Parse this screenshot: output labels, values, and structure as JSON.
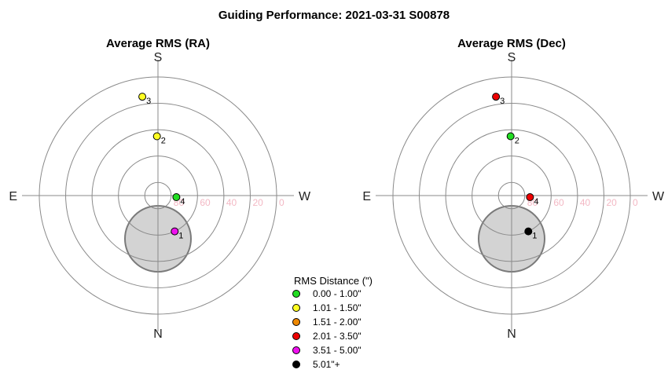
{
  "title": "Guiding Performance: 2021-03-31 S00878",
  "legend": {
    "title": "RMS Distance (\")",
    "items": [
      {
        "label": "0.00 - 1.00\"",
        "color": "#22dd22"
      },
      {
        "label": "1.01 - 1.50\"",
        "color": "#ffff22"
      },
      {
        "label": "1.51 - 2.00\"",
        "color": "#ee8800"
      },
      {
        "label": "2.01 - 3.50\"",
        "color": "#ee0000"
      },
      {
        "label": "3.51 - 5.00\"",
        "color": "#ee11ee"
      },
      {
        "label": "5.01\"+",
        "color": "#000000"
      }
    ]
  },
  "chart_data": [
    {
      "type": "scatter",
      "projection": "polar-sky",
      "title": "Average RMS (RA)",
      "compass": {
        "top": "S",
        "bottom": "N",
        "left": "E",
        "right": "W"
      },
      "altitude_rings": [
        0,
        20,
        40,
        60,
        80
      ],
      "altitude_tick_labels": [
        "80",
        "60",
        "40",
        "20",
        "0"
      ],
      "points": [
        {
          "label": "1",
          "azimuth": 335,
          "altitude": 60,
          "rms_class": "3.51 - 5.00\"",
          "color": "#ee11ee"
        },
        {
          "label": "2",
          "azimuth": 179,
          "altitude": 45,
          "rms_class": "1.01 - 1.50\"",
          "color": "#ffff22"
        },
        {
          "label": "3",
          "azimuth": 171,
          "altitude": 14,
          "rms_class": "1.01 - 1.50\"",
          "color": "#ffff22"
        },
        {
          "label": "4",
          "azimuth": 275,
          "altitude": 76,
          "rms_class": "0.00 - 1.00\"",
          "color": "#22dd22"
        }
      ]
    },
    {
      "type": "scatter",
      "projection": "polar-sky",
      "title": "Average RMS (Dec)",
      "compass": {
        "top": "S",
        "bottom": "N",
        "left": "E",
        "right": "W"
      },
      "altitude_rings": [
        0,
        20,
        40,
        60,
        80
      ],
      "altitude_tick_labels": [
        "80",
        "60",
        "40",
        "20",
        "0"
      ],
      "points": [
        {
          "label": "1",
          "azimuth": 335,
          "altitude": 60,
          "rms_class": "5.01\"+",
          "color": "#000000"
        },
        {
          "label": "2",
          "azimuth": 179,
          "altitude": 45,
          "rms_class": "0.00 - 1.00\"",
          "color": "#22dd22"
        },
        {
          "label": "3",
          "azimuth": 171,
          "altitude": 14,
          "rms_class": "2.01 - 3.50\"",
          "color": "#ee0000"
        },
        {
          "label": "4",
          "azimuth": 275,
          "altitude": 76,
          "rms_class": "2.01 - 3.50\"",
          "color": "#ee0000"
        }
      ]
    }
  ]
}
